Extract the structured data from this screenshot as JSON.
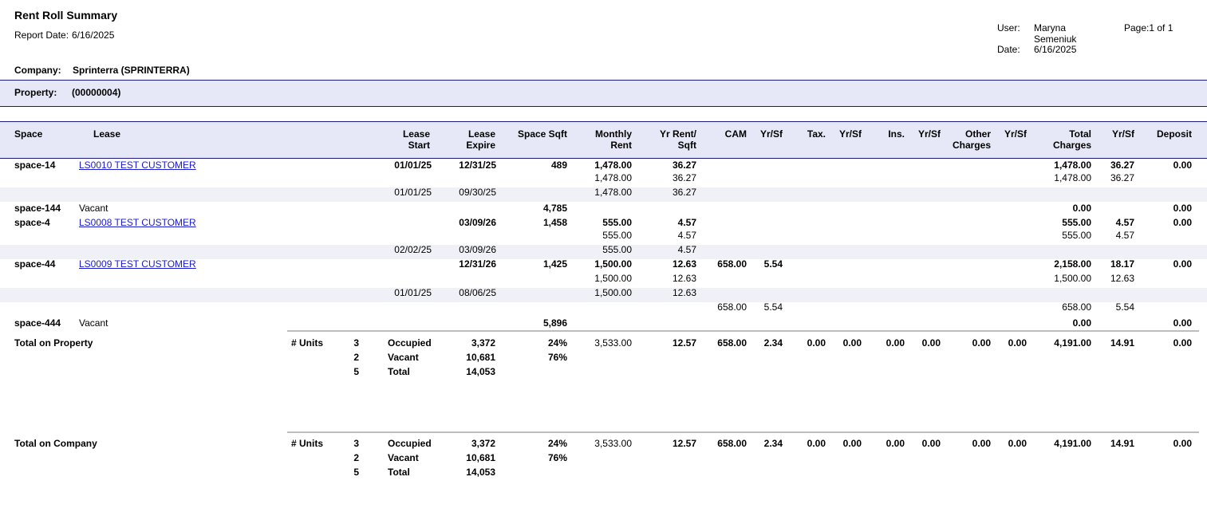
{
  "report": {
    "title": "Rent Roll Summary",
    "report_date_label": "Report Date:",
    "report_date": "6/16/2025",
    "user_label": "User:",
    "user_line1": "Maryna",
    "user_line2": "Semeniuk",
    "date_label": "Date:",
    "date": "6/16/2025",
    "page": "Page:1 of 1"
  },
  "company": {
    "label": "Company:",
    "value": "Sprinterra (SPRINTERRA)"
  },
  "property": {
    "label": "Property:",
    "value": "(00000004)"
  },
  "columns": {
    "space": "Space",
    "lease": "Lease",
    "lease_start_1": "Lease",
    "lease_start_2": "Start",
    "lease_expire_1": "Lease",
    "lease_expire_2": "Expire",
    "space_sqft": "Space Sqft",
    "monthly_rent_1": "Monthly",
    "monthly_rent_2": "Rent",
    "yr_rent_1": "Yr Rent/",
    "yr_rent_2": "Sqft",
    "cam": "CAM",
    "cam_yrsf": "Yr/Sf",
    "tax": "Tax.",
    "tax_yrsf": "Yr/Sf",
    "ins": "Ins.",
    "ins_yrsf": "Yr/Sf",
    "other_1": "Other",
    "other_2": "Charges",
    "other_yrsf": "Yr/Sf",
    "total_1": "Total",
    "total_2": "Charges",
    "total_yrsf": "Yr/Sf",
    "deposit": "Deposit"
  },
  "rows": [
    {
      "space": "space-14",
      "lease": "LS0010 TEST CUSTOMER",
      "start": "01/01/25",
      "expire": "12/31/25",
      "sqft": "489",
      "rent": "1,478.00",
      "yrrent": "36.27",
      "total": "1,478.00",
      "totalyr": "36.27",
      "deposit": "0.00"
    },
    {
      "rent": "1,478.00",
      "yrrent": "36.27",
      "total": "1,478.00",
      "totalyr": "36.27"
    },
    {
      "start": "01/01/25",
      "expire": "09/30/25",
      "rent": "1,478.00",
      "yrrent": "36.27"
    },
    {
      "space": "space-144",
      "lease": "Vacant",
      "sqft": "4,785",
      "total": "0.00",
      "deposit": "0.00"
    },
    {
      "space": "space-4",
      "lease": "LS0008 TEST CUSTOMER",
      "expire": "03/09/26",
      "sqft": "1,458",
      "rent": "555.00",
      "yrrent": "4.57",
      "total": "555.00",
      "totalyr": "4.57",
      "deposit": "0.00"
    },
    {
      "rent": "555.00",
      "yrrent": "4.57",
      "total": "555.00",
      "totalyr": "4.57"
    },
    {
      "start": "02/02/25",
      "expire": "03/09/26",
      "rent": "555.00",
      "yrrent": "4.57"
    },
    {
      "space": "space-44",
      "lease": "LS0009 TEST CUSTOMER",
      "expire": "12/31/26",
      "sqft": "1,425",
      "rent": "1,500.00",
      "yrrent": "12.63",
      "cam": "658.00",
      "camyr": "5.54",
      "total": "2,158.00",
      "totalyr": "18.17",
      "deposit": "0.00"
    },
    {
      "rent": "1,500.00",
      "yrrent": "12.63",
      "total": "1,500.00",
      "totalyr": "12.63"
    },
    {
      "start": "01/01/25",
      "expire": "08/06/25",
      "rent": "1,500.00",
      "yrrent": "12.63"
    },
    {
      "cam": "658.00",
      "camyr": "5.54",
      "total": "658.00",
      "totalyr": "5.54"
    },
    {
      "space": "space-444",
      "lease": "Vacant",
      "sqft": "5,896",
      "total": "0.00",
      "deposit": "0.00"
    }
  ],
  "total_property": {
    "label": "Total on Property",
    "units_label": "# Units",
    "occ_count": "3",
    "occ_label": "Occupied",
    "occ_sqft": "3,372",
    "occ_pct": "24%",
    "vac_count": "2",
    "vac_label": "Vacant",
    "vac_sqft": "10,681",
    "vac_pct": "76%",
    "tot_count": "5",
    "tot_label": "Total",
    "tot_sqft": "14,053",
    "rent": "3,533.00",
    "yrrent": "12.57",
    "cam": "658.00",
    "camyr": "2.34",
    "tax": "0.00",
    "taxyr": "0.00",
    "ins": "0.00",
    "insyr": "0.00",
    "other": "0.00",
    "otheryr": "0.00",
    "total": "4,191.00",
    "totalyr": "14.91",
    "deposit": "0.00"
  },
  "total_company": {
    "label": "Total on Company",
    "units_label": "# Units",
    "occ_count": "3",
    "occ_label": "Occupied",
    "occ_sqft": "3,372",
    "occ_pct": "24%",
    "vac_count": "2",
    "vac_label": "Vacant",
    "vac_sqft": "10,681",
    "vac_pct": "76%",
    "tot_count": "5",
    "tot_label": "Total",
    "tot_sqft": "14,053",
    "rent": "3,533.00",
    "yrrent": "12.57",
    "cam": "658.00",
    "camyr": "2.34",
    "tax": "0.00",
    "taxyr": "0.00",
    "ins": "0.00",
    "insyr": "0.00",
    "other": "0.00",
    "otheryr": "0.00",
    "total": "4,191.00",
    "totalyr": "14.91",
    "deposit": "0.00"
  }
}
